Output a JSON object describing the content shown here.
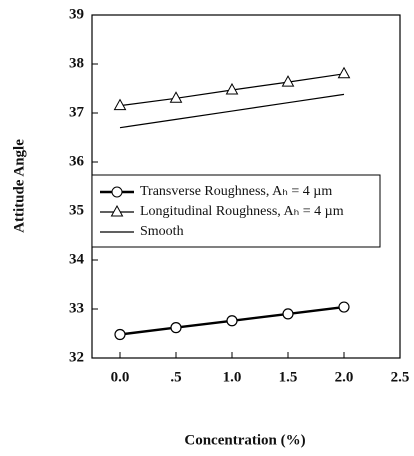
{
  "chart_data": {
    "type": "line",
    "x_label": "Concentration (%)",
    "y_label": "Attitude Angle",
    "xlim": [
      -0.25,
      2.5
    ],
    "ylim": [
      32,
      39
    ],
    "xticks": [
      {
        "value": 0,
        "label": "0.0"
      },
      {
        "value": 0.5,
        "label": ".5"
      },
      {
        "value": 1,
        "label": "1.0"
      },
      1.5,
      {
        "value": 2,
        "label": "2.0"
      },
      2.5
    ],
    "yticks": [
      32,
      33,
      34,
      35,
      36,
      37,
      38,
      39
    ],
    "x": [
      0,
      0.5,
      1,
      1.5,
      2
    ],
    "legend_position": "middle-left",
    "series": [
      {
        "name": "Transverse Roughness, Aₕ = 4 µm",
        "color": "#000000",
        "marker": "circle",
        "values": [
          32.48,
          32.62,
          32.76,
          32.9,
          33.04
        ]
      },
      {
        "name": "Longitudinal Roughness, Aₕ = 4 µm",
        "color": "#000000",
        "marker": "triangle",
        "values": [
          37.15,
          37.3,
          37.47,
          37.63,
          37.8
        ]
      },
      {
        "name": "Smooth",
        "color": "#000000",
        "marker": "none",
        "values": [
          36.7,
          36.87,
          37.04,
          37.21,
          37.38
        ]
      }
    ]
  }
}
